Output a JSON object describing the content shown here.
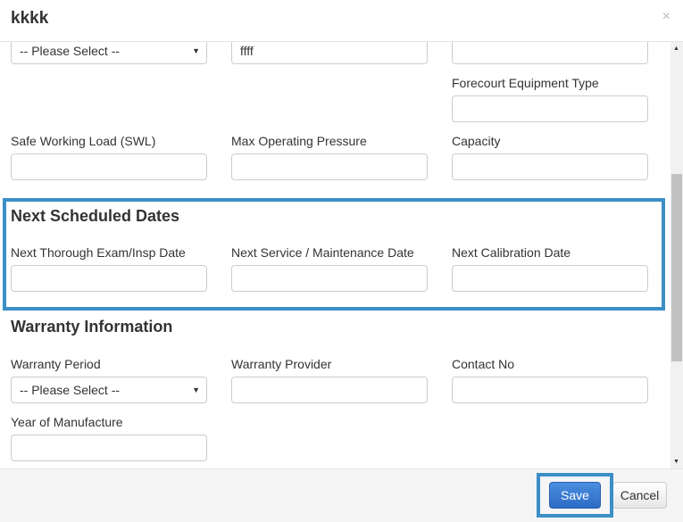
{
  "modal": {
    "title": "kkkk",
    "close": "×"
  },
  "fields": {
    "top_select": "-- Please Select --",
    "top_text": "ffff",
    "forecourt_label": "Forecourt Equipment Type",
    "swl_label": "Safe Working Load (SWL)",
    "pressure_label": "Max Operating Pressure",
    "capacity_label": "Capacity"
  },
  "next_dates": {
    "heading": "Next Scheduled Dates",
    "exam_label": "Next Thorough Exam/Insp Date",
    "service_label": "Next Service / Maintenance Date",
    "calibration_label": "Next Calibration Date"
  },
  "warranty": {
    "heading": "Warranty Information",
    "period_label": "Warranty Period",
    "period_value": "-- Please Select --",
    "provider_label": "Warranty Provider",
    "contact_label": "Contact No",
    "year_label": "Year of Manufacture"
  },
  "footer": {
    "save": "Save",
    "cancel": "Cancel"
  },
  "colors": {
    "highlight": "#3b8fc7",
    "primary": "#3071c9"
  }
}
